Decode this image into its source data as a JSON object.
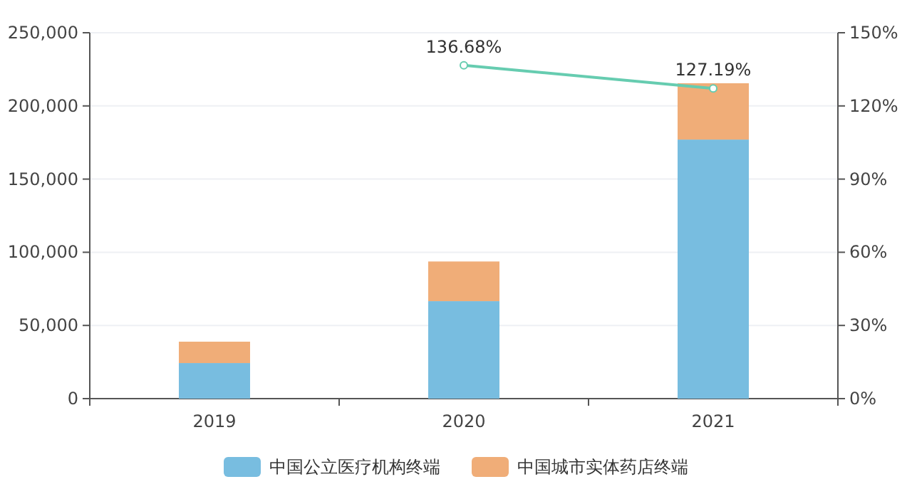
{
  "chart_data": {
    "type": "bar",
    "stacked": true,
    "categories": [
      "2019",
      "2020",
      "2021"
    ],
    "series": [
      {
        "name": "中国公立医疗机构终端",
        "color": "#78bde0",
        "values": [
          24300,
          66600,
          177000
        ]
      },
      {
        "name": "中国城市实体药店终端",
        "color": "#f0ad78",
        "values": [
          14600,
          27100,
          38500
        ]
      },
      {
        "type": "line",
        "axis": "y2",
        "color": "#66ccb0",
        "marker": "circle",
        "values": [
          null,
          136.68,
          127.19
        ],
        "value_labels": [
          null,
          "136.68%",
          "127.19%"
        ]
      }
    ],
    "ylim": [
      0,
      250000
    ],
    "yticks": [
      {
        "value": 0,
        "label": "0"
      },
      {
        "value": 50000,
        "label": "50,000"
      },
      {
        "value": 100000,
        "label": "100,000"
      },
      {
        "value": 150000,
        "label": "150,000"
      },
      {
        "value": 200000,
        "label": "200,000"
      },
      {
        "value": 250000,
        "label": "250,000"
      }
    ],
    "y2lim": [
      0,
      150
    ],
    "y2ticks": [
      {
        "value": 0,
        "label": "0%"
      },
      {
        "value": 30,
        "label": "30%"
      },
      {
        "value": 60,
        "label": "60%"
      },
      {
        "value": 90,
        "label": "90%"
      },
      {
        "value": 120,
        "label": "120%"
      },
      {
        "value": 150,
        "label": "150%"
      }
    ],
    "grid": "y",
    "legend": "bottom"
  }
}
